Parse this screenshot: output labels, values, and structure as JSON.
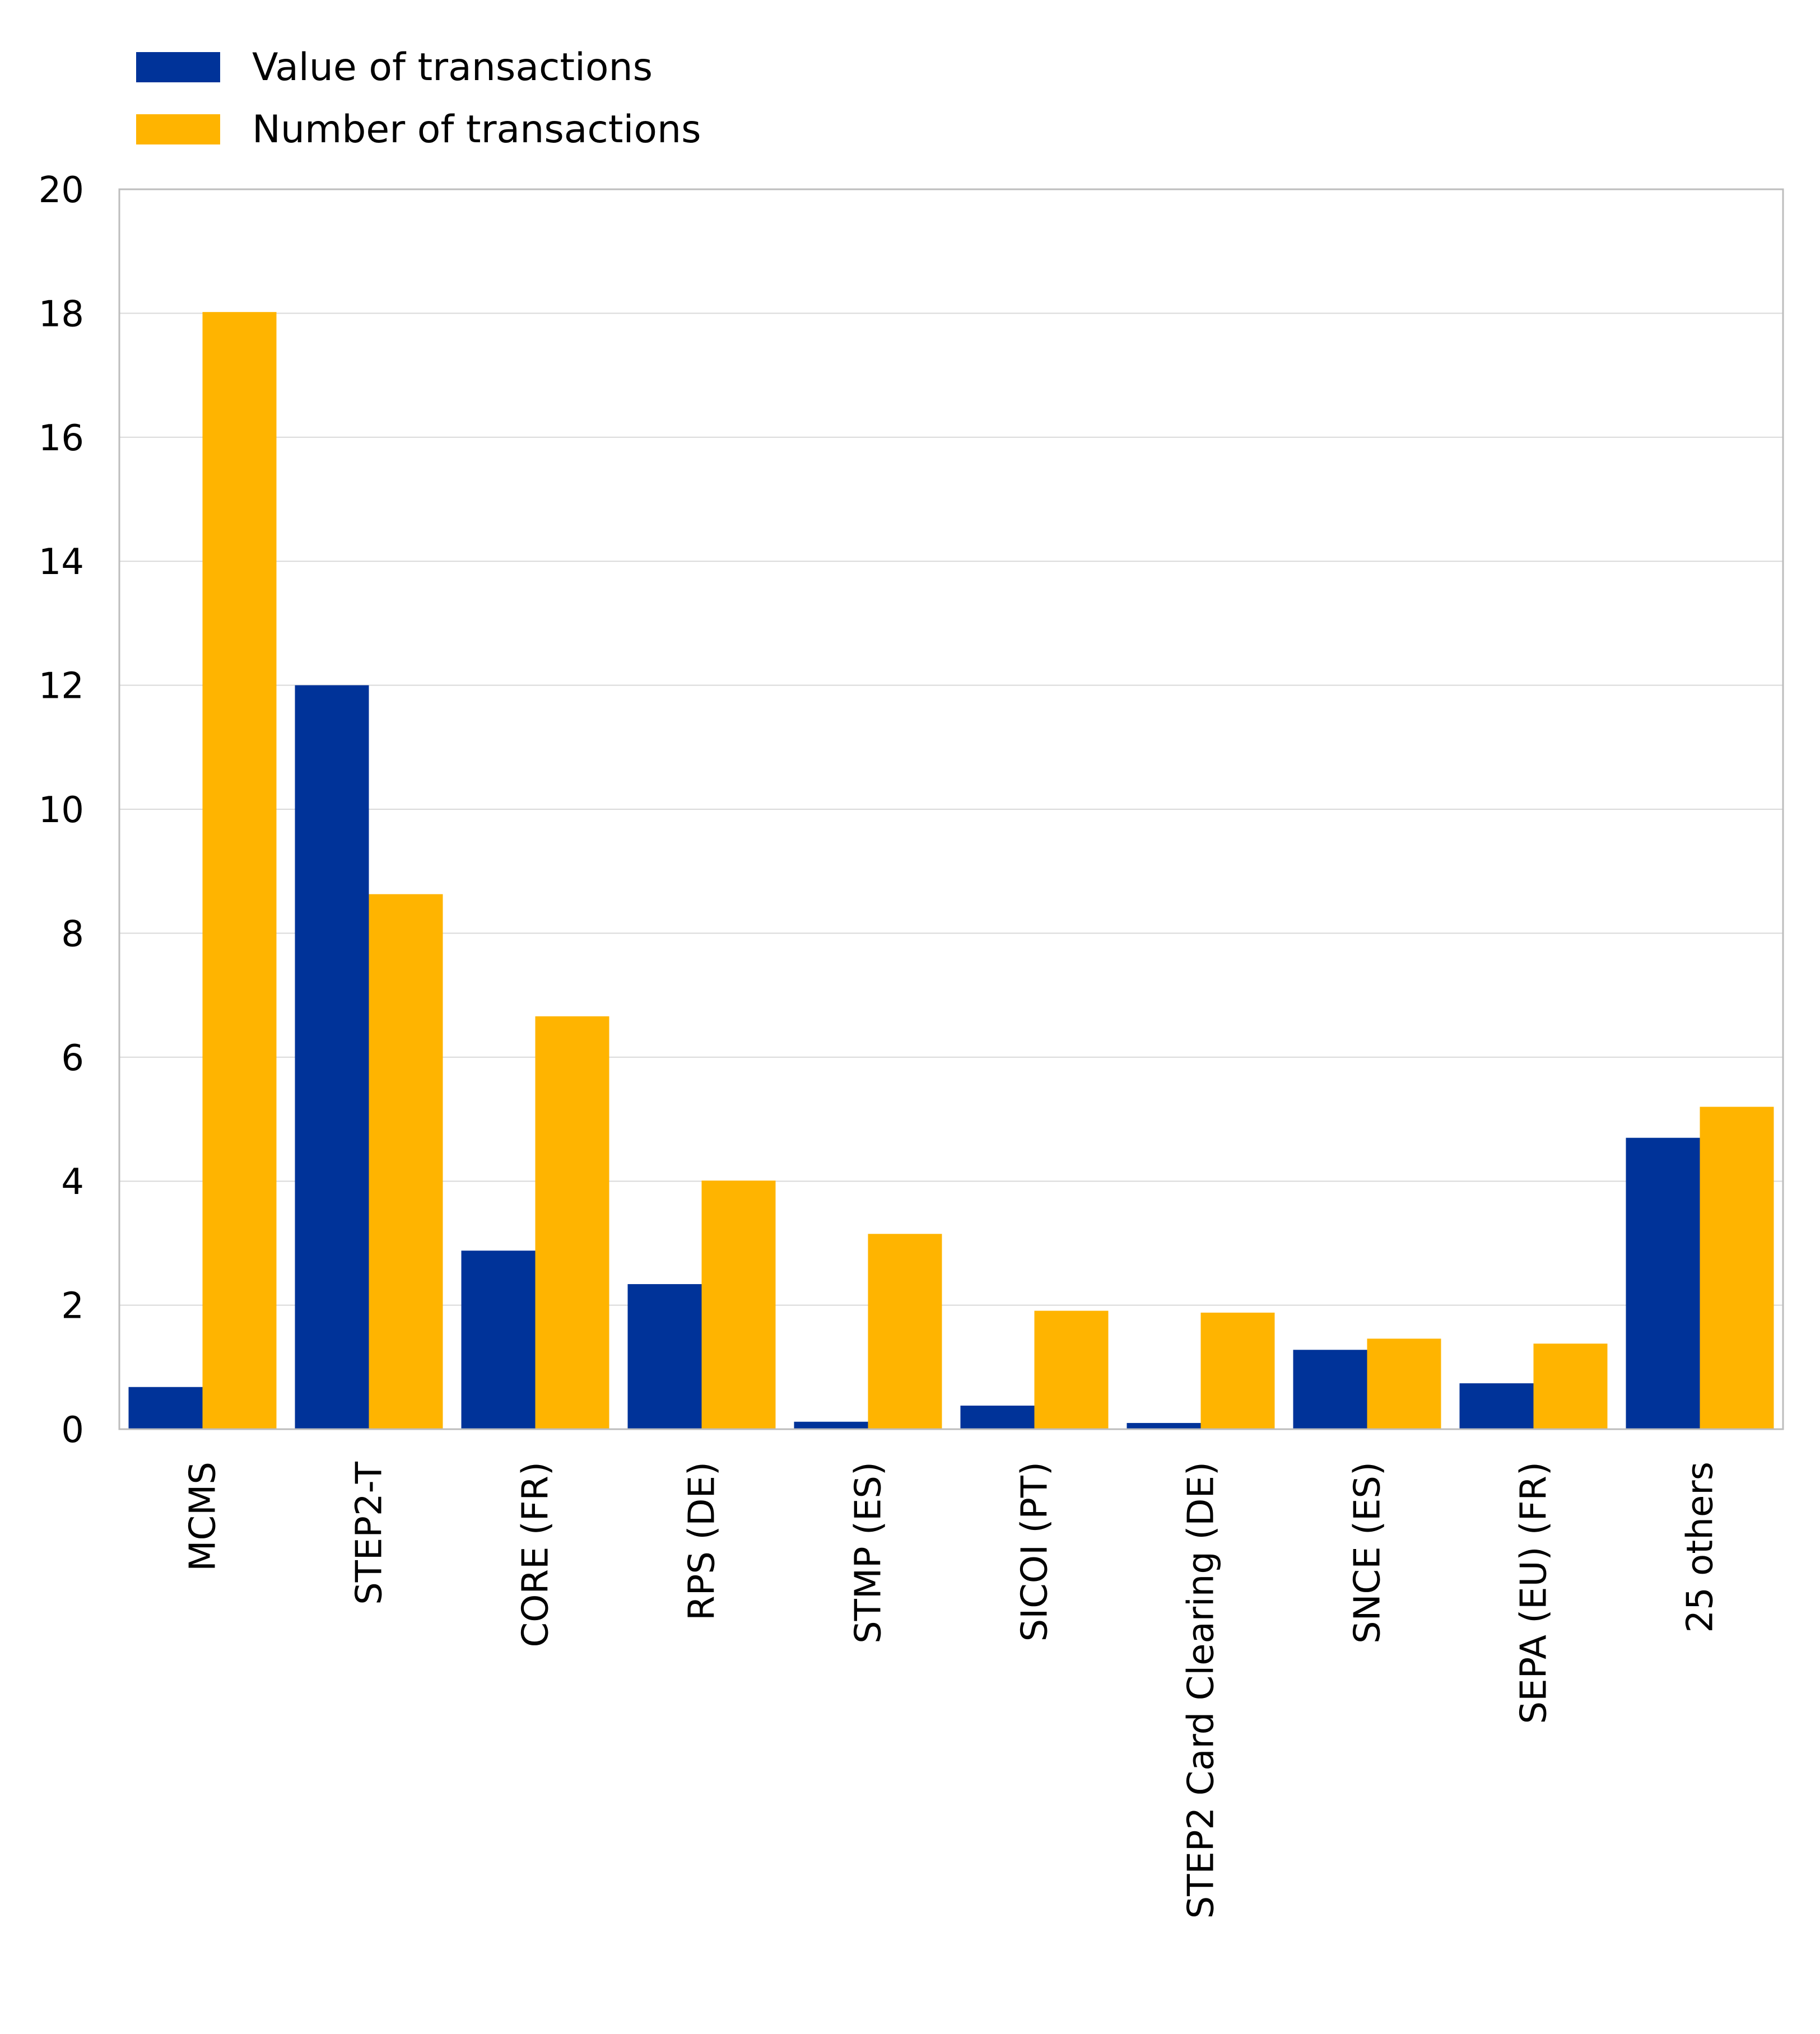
{
  "chart_data": {
    "type": "bar",
    "categories": [
      "MCMS",
      "STEP2-T",
      "CORE (FR)",
      "RPS (DE)",
      "STMP (ES)",
      "SICOI (PT)",
      "STEP2 Card Clearing (DE)",
      "SNCE (ES)",
      "SEPA (EU) (FR)",
      "25 others"
    ],
    "series": [
      {
        "name": "Value of transactions",
        "color": "#003399",
        "values": [
          0.68,
          12.0,
          2.88,
          2.34,
          0.12,
          0.38,
          0.1,
          1.28,
          0.74,
          4.7
        ]
      },
      {
        "name": "Number of transactions",
        "color": "#FFB400",
        "values": [
          18.02,
          8.63,
          6.66,
          4.01,
          3.15,
          1.91,
          1.88,
          1.46,
          1.38,
          5.2
        ]
      }
    ],
    "y_ticks": [
      "0",
      "2",
      "4",
      "6",
      "8",
      "10",
      "12",
      "14",
      "16",
      "18",
      "20"
    ],
    "ylim": [
      0,
      20
    ],
    "grid": true,
    "legend_position": "top-left"
  }
}
